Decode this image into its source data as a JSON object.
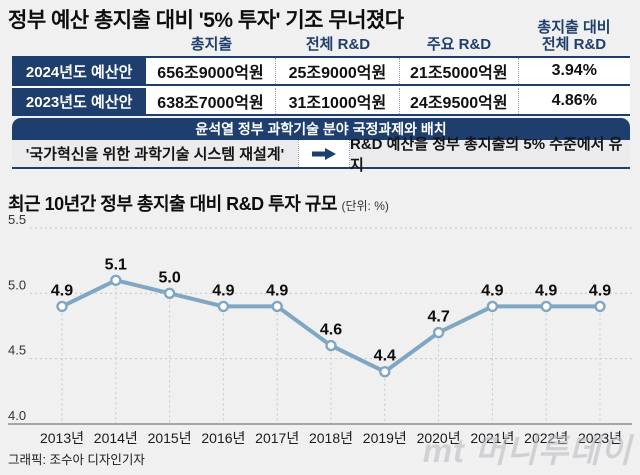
{
  "page": {
    "title": "정부 예산 총지출 대비 '5% 투자' 기조 무너졌다",
    "credit": "그래픽: 조수아 디자인기자",
    "watermark": "mt 머니투데이"
  },
  "colors": {
    "navy": "#1e3e6e",
    "line_blue": "#7fa6c2",
    "page_bg": "#f0f0f1",
    "grid_gray": "#c6c6c6"
  },
  "budget_table": {
    "headers": [
      "총지출",
      "전체 R&D",
      "주요 R&D"
    ],
    "header4_lines": [
      "총지출 대비",
      "전체 R&D"
    ],
    "rows": [
      {
        "label": "2024년도 예산안",
        "values": [
          "656조9000억원",
          "25조9000억원",
          "21조5000억원",
          "3.94%"
        ]
      },
      {
        "label": "2023년도 예산안",
        "values": [
          "638조7000억원",
          "31조1000억원",
          "24조9500억원",
          "4.86%"
        ]
      }
    ]
  },
  "policy_box": {
    "header": "윤석열 정부 과학기술 분야 국정과제와 배치",
    "left": "'국가혁신을 위한 과학기술 시스템 재설계'",
    "arrow_icon": "right-arrow",
    "right": "R&D 예산을 정부 총지출의 5% 수준에서 유지"
  },
  "chart_section": {
    "title": "최근 10년간 정부 총지출 대비 R&D 투자 규모",
    "unit": "(단위: %)"
  },
  "chart_data": {
    "type": "line",
    "title": "최근 10년간 정부 총지출 대비 R&D 투자 규모",
    "unit": "%",
    "categories": [
      "2013년",
      "2014년",
      "2015년",
      "2016년",
      "2017년",
      "2018년",
      "2019년",
      "2020년",
      "2021년",
      "2022년",
      "2023년"
    ],
    "values": [
      4.9,
      5.1,
      5.0,
      4.9,
      4.9,
      4.6,
      4.4,
      4.7,
      4.9,
      4.9,
      4.9
    ],
    "ylim": [
      4.0,
      5.5
    ],
    "yticks": [
      5.5,
      5.0,
      4.5,
      4.0
    ],
    "grid": "horizontal dashed lines + dashed droplines from points to x-axis",
    "legend": "none",
    "line_color": "#7fa6c2",
    "marker": "white circle with blue stroke",
    "data_labels": "above each point"
  }
}
